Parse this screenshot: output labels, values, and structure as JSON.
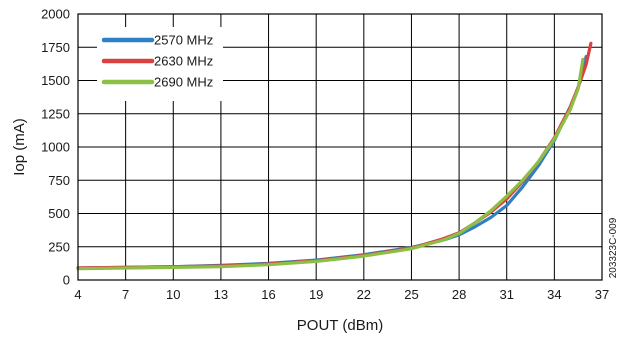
{
  "chart_data": {
    "type": "line",
    "xlabel": "POUT (dBm)",
    "ylabel": "Iop (mA)",
    "xlim": [
      4,
      37
    ],
    "ylim": [
      0,
      2000
    ],
    "xticks": [
      4,
      7,
      10,
      13,
      16,
      19,
      22,
      25,
      28,
      31,
      34,
      37
    ],
    "yticks": [
      0,
      250,
      500,
      750,
      1000,
      1250,
      1500,
      1750,
      2000
    ],
    "grid": true,
    "legend_position": "top-left",
    "side_note": "203323C-009",
    "series": [
      {
        "name": "2570 MHz",
        "color": "#2f7fc4",
        "x": [
          4,
          7,
          10,
          13,
          16,
          19,
          22,
          25,
          27,
          28,
          29,
          30,
          31,
          32,
          33,
          34,
          35,
          35.5,
          36
        ],
        "y": [
          90,
          95,
          100,
          110,
          125,
          150,
          190,
          245,
          300,
          340,
          400,
          470,
          560,
          700,
          860,
          1050,
          1300,
          1450,
          1680
        ]
      },
      {
        "name": "2630 MHz",
        "color": "#d94040",
        "x": [
          4,
          7,
          10,
          13,
          16,
          19,
          22,
          25,
          27,
          28,
          29,
          30,
          31,
          32,
          33,
          34,
          35,
          35.5,
          36,
          36.3
        ],
        "y": [
          90,
          95,
          100,
          105,
          120,
          145,
          185,
          240,
          310,
          355,
          430,
          510,
          610,
          740,
          890,
          1070,
          1300,
          1450,
          1620,
          1780
        ]
      },
      {
        "name": "2690 MHz",
        "color": "#8dbf45",
        "x": [
          4,
          7,
          10,
          13,
          16,
          19,
          22,
          25,
          27,
          28,
          29,
          30,
          31,
          32,
          33,
          34,
          35,
          35.5,
          35.8
        ],
        "y": [
          85,
          90,
          95,
          100,
          115,
          140,
          180,
          235,
          300,
          350,
          430,
          520,
          630,
          750,
          890,
          1060,
          1280,
          1440,
          1660
        ]
      }
    ]
  }
}
